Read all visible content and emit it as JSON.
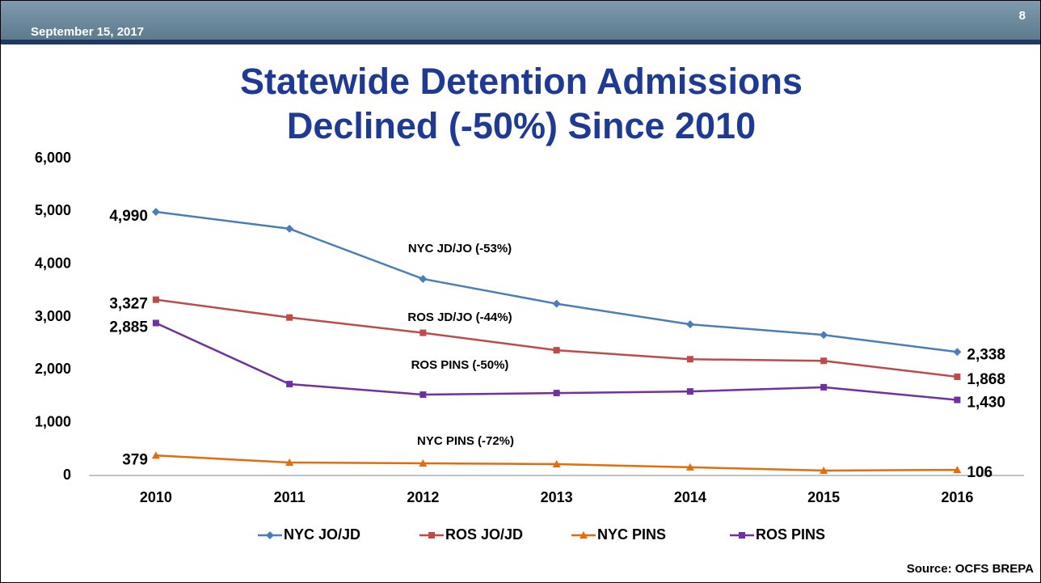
{
  "header": {
    "date": "September 15, 2017",
    "page_number": "8"
  },
  "chart_data": {
    "type": "line",
    "title": "Statewide Detention Admissions Declined (-50%) Since 2010",
    "categories": [
      "2010",
      "2011",
      "2012",
      "2013",
      "2014",
      "2015",
      "2016"
    ],
    "series": [
      {
        "name": "NYC JO/JD",
        "color": "#4a7ebb",
        "marker": "diamond",
        "values": [
          4990,
          4670,
          3720,
          3250,
          2860,
          2660,
          2338
        ],
        "value_labels": [
          "4,990",
          null,
          null,
          null,
          null,
          null,
          "2,338"
        ]
      },
      {
        "name": "ROS JO/JD",
        "color": "#be4b48",
        "marker": "square",
        "values": [
          3327,
          2990,
          2700,
          2370,
          2200,
          2170,
          1868
        ],
        "value_labels": [
          "3,327",
          null,
          null,
          null,
          null,
          null,
          "1,868"
        ]
      },
      {
        "name": "NYC PINS",
        "color": "#e46c0a",
        "marker": "triangle",
        "values": [
          379,
          245,
          230,
          215,
          155,
          92,
          106
        ],
        "value_labels": [
          "379",
          null,
          null,
          null,
          null,
          null,
          "106"
        ]
      },
      {
        "name": "ROS PINS",
        "color": "#7030a0",
        "marker": "square",
        "values": [
          2885,
          1730,
          1530,
          1560,
          1590,
          1670,
          1430
        ],
        "value_labels": [
          "2,885",
          null,
          null,
          null,
          null,
          null,
          "1,430"
        ]
      }
    ],
    "annotations": [
      "NYC JD/JO (-53%)",
      "ROS JD/JO (-44%)",
      "ROS PINS (-50%)",
      "NYC PINS (-72%)"
    ],
    "ylim": [
      0,
      6000
    ],
    "yticks": [
      0,
      {
        "value": 1000,
        "label": "1,000"
      },
      {
        "value": 2000,
        "label": "2,000"
      },
      {
        "value": 3000,
        "label": "3,000"
      },
      {
        "value": 4000,
        "label": "4,000"
      },
      {
        "value": 5000,
        "label": "5,000"
      },
      {
        "value": 6000,
        "label": "6,000"
      }
    ],
    "grid": false,
    "legend": "bottom",
    "source": "Source: OCFS BREPA"
  }
}
